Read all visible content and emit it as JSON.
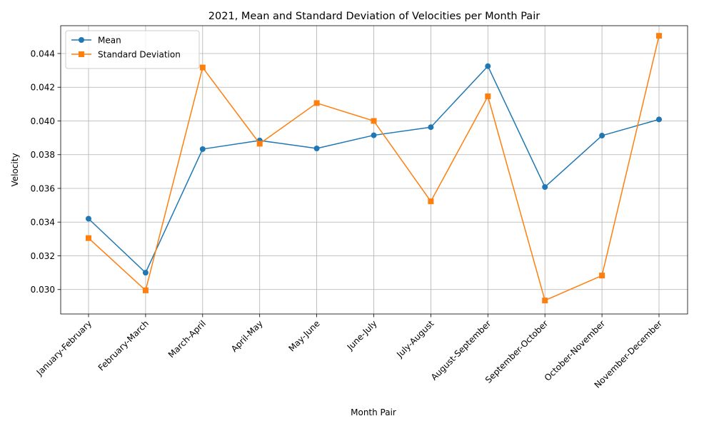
{
  "chart_data": {
    "type": "line",
    "title": "2021, Mean and Standard Deviation of Velocities per Month Pair",
    "xlabel": "Month Pair",
    "ylabel": "Velocity",
    "categories": [
      "January-February",
      "February-March",
      "March-April",
      "April-May",
      "May-June",
      "June-July",
      "July-August",
      "August-September",
      "September-October",
      "October-November",
      "November-December"
    ],
    "yticks": [
      "0.030",
      "0.032",
      "0.034",
      "0.036",
      "0.038",
      "0.040",
      "0.042",
      "0.044"
    ],
    "ylim": [
      0.02855,
      0.04565
    ],
    "grid": true,
    "legend_position": "upper-left",
    "series": [
      {
        "name": "Mean",
        "color": "#1f77b4",
        "marker": "circle",
        "values": [
          0.0342,
          0.031,
          0.03833,
          0.03884,
          0.03837,
          0.03915,
          0.03963,
          0.04325,
          0.03608,
          0.03913,
          0.04009
        ]
      },
      {
        "name": "Standard Deviation",
        "color": "#ff7f0e",
        "marker": "square",
        "values": [
          0.03305,
          0.02995,
          0.04317,
          0.03865,
          0.04106,
          0.04,
          0.03523,
          0.04146,
          0.02935,
          0.03083,
          0.04505
        ]
      }
    ]
  }
}
